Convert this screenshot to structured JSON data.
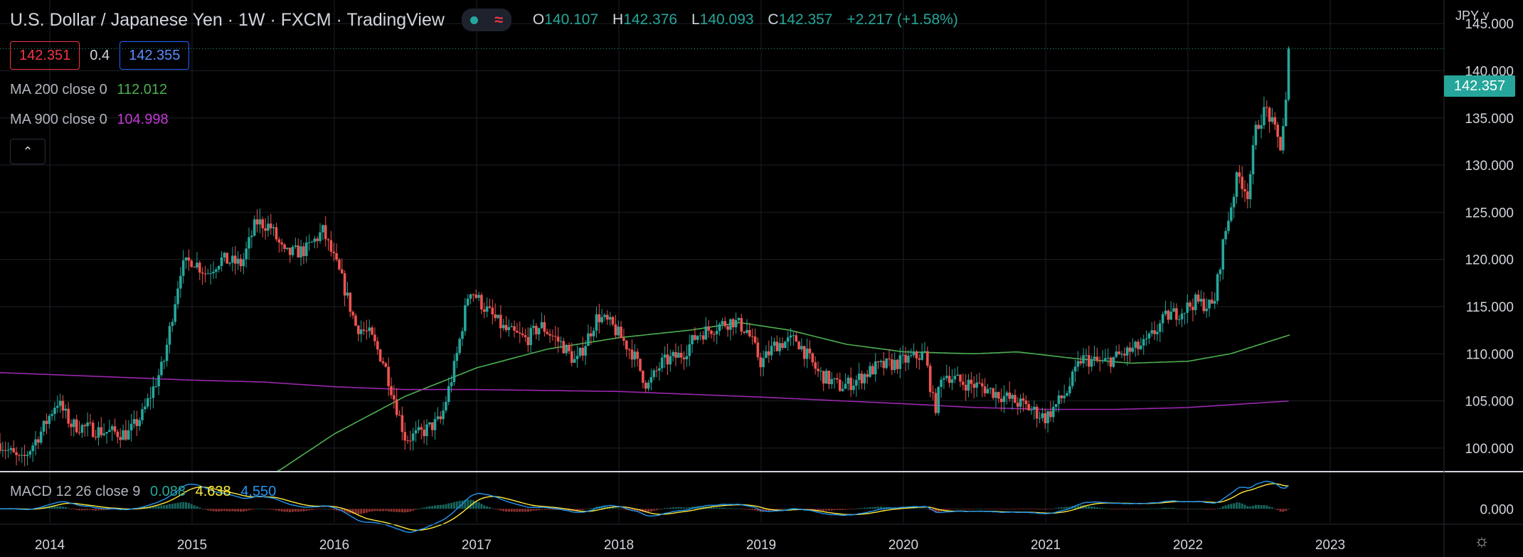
{
  "header": {
    "title": "U.S. Dollar / Japanese Yen · 1W · FXCM · TradingView",
    "ohlc": {
      "o_label": "O",
      "o": "140.107",
      "h_label": "H",
      "h": "142.376",
      "l_label": "L",
      "l": "140.093",
      "c_label": "C",
      "c": "142.357",
      "change": "+2.217 (+1.58%)"
    },
    "status_icons": [
      "market-status-dot-icon",
      "data-wave-icon"
    ]
  },
  "trade": {
    "sell": "142.351",
    "spread": "0.4",
    "buy": "142.355"
  },
  "indicators": {
    "ma200_label": "MA 200 close 0",
    "ma200_value": "112.012",
    "ma900_label": "MA 900 close 0",
    "ma900_value": "104.998",
    "macd_label": "MACD 12 26 close 9",
    "macd_hist": "0.088",
    "macd_line": "4.638",
    "macd_signal": "4.550"
  },
  "axis": {
    "currency": "JPY ˅",
    "last_price": "142.357",
    "macd_zero": "0.000"
  },
  "colors": {
    "up": "#26a69a",
    "down": "#ef5350",
    "ma200": "#4caf50",
    "ma900": "#9c27b0",
    "macd": "#2196f3",
    "signal": "#ffeb3b"
  },
  "chart_data": {
    "type": "candlestick",
    "interval": "1W",
    "ylim": [
      97.5,
      147.5
    ],
    "y_ticks": [
      100,
      105,
      110,
      115,
      120,
      125,
      130,
      135,
      140,
      145
    ],
    "y_tick_labels": [
      "100.000",
      "105.000",
      "110.000",
      "115.000",
      "120.000",
      "125.000",
      "130.000",
      "135.000",
      "140.000",
      "145.000"
    ],
    "x_ticks": [
      "2014",
      "2015",
      "2016",
      "2017",
      "2018",
      "2019",
      "2020",
      "2021",
      "2022",
      "2023"
    ],
    "xlim": [
      2013.65,
      2023.8
    ],
    "price_anchors": [
      [
        2013.65,
        100.5
      ],
      [
        2013.8,
        98.5
      ],
      [
        2013.95,
        102
      ],
      [
        2014.05,
        105
      ],
      [
        2014.15,
        102.5
      ],
      [
        2014.35,
        101.8
      ],
      [
        2014.55,
        101.5
      ],
      [
        2014.65,
        103.5
      ],
      [
        2014.8,
        109
      ],
      [
        2014.92,
        119
      ],
      [
        2015.0,
        120
      ],
      [
        2015.1,
        118.5
      ],
      [
        2015.2,
        120
      ],
      [
        2015.35,
        119.5
      ],
      [
        2015.45,
        124
      ],
      [
        2015.55,
        123.5
      ],
      [
        2015.65,
        120.5
      ],
      [
        2015.8,
        121
      ],
      [
        2015.92,
        123
      ],
      [
        2016.05,
        118
      ],
      [
        2016.15,
        113
      ],
      [
        2016.25,
        112
      ],
      [
        2016.35,
        109
      ],
      [
        2016.5,
        101
      ],
      [
        2016.6,
        101.5
      ],
      [
        2016.75,
        103
      ],
      [
        2016.85,
        109
      ],
      [
        2016.95,
        117
      ],
      [
        2017.05,
        115
      ],
      [
        2017.2,
        112.5
      ],
      [
        2017.35,
        111.5
      ],
      [
        2017.45,
        113
      ],
      [
        2017.6,
        111
      ],
      [
        2017.7,
        109
      ],
      [
        2017.85,
        114
      ],
      [
        2017.95,
        113
      ],
      [
        2018.1,
        110
      ],
      [
        2018.2,
        106.5
      ],
      [
        2018.3,
        109
      ],
      [
        2018.45,
        110
      ],
      [
        2018.55,
        112
      ],
      [
        2018.7,
        113
      ],
      [
        2018.8,
        113.5
      ],
      [
        2018.9,
        112.5
      ],
      [
        2019.0,
        109
      ],
      [
        2019.1,
        111
      ],
      [
        2019.25,
        111.5
      ],
      [
        2019.4,
        108
      ],
      [
        2019.55,
        106.5
      ],
      [
        2019.65,
        107
      ],
      [
        2019.8,
        108.5
      ],
      [
        2019.95,
        109
      ],
      [
        2020.05,
        109.5
      ],
      [
        2020.15,
        110
      ],
      [
        2020.22,
        104
      ],
      [
        2020.28,
        108
      ],
      [
        2020.4,
        107
      ],
      [
        2020.55,
        106.5
      ],
      [
        2020.7,
        105.5
      ],
      [
        2020.85,
        104.5
      ],
      [
        2021.0,
        103.2
      ],
      [
        2021.15,
        106
      ],
      [
        2021.25,
        109.5
      ],
      [
        2021.4,
        109
      ],
      [
        2021.55,
        110
      ],
      [
        2021.7,
        111
      ],
      [
        2021.85,
        114
      ],
      [
        2021.95,
        114.5
      ],
      [
        2022.05,
        115.5
      ],
      [
        2022.18,
        115
      ],
      [
        2022.25,
        122
      ],
      [
        2022.35,
        129
      ],
      [
        2022.42,
        127
      ],
      [
        2022.48,
        134
      ],
      [
        2022.55,
        136
      ],
      [
        2022.6,
        134
      ],
      [
        2022.65,
        132
      ],
      [
        2022.7,
        138
      ],
      [
        2022.72,
        142.357
      ]
    ],
    "ma200_anchors": [
      [
        2015.6,
        97.5
      ],
      [
        2016.0,
        101.5
      ],
      [
        2016.5,
        105.5
      ],
      [
        2017.0,
        108.5
      ],
      [
        2017.5,
        110.5
      ],
      [
        2018.0,
        111.7
      ],
      [
        2018.5,
        112.5
      ],
      [
        2018.85,
        113.3
      ],
      [
        2019.2,
        112.5
      ],
      [
        2019.6,
        111
      ],
      [
        2020.0,
        110.2
      ],
      [
        2020.5,
        110
      ],
      [
        2020.8,
        110.2
      ],
      [
        2021.2,
        109.5
      ],
      [
        2021.6,
        109
      ],
      [
        2022.0,
        109.2
      ],
      [
        2022.3,
        110
      ],
      [
        2022.72,
        112.012
      ]
    ],
    "ma900_anchors": [
      [
        2013.65,
        108
      ],
      [
        2014.5,
        107.5
      ],
      [
        2015.0,
        107.2
      ],
      [
        2015.5,
        107
      ],
      [
        2016.0,
        106.5
      ],
      [
        2016.5,
        106.2
      ],
      [
        2017.0,
        106.2
      ],
      [
        2018.0,
        106
      ],
      [
        2019.0,
        105.4
      ],
      [
        2020.0,
        104.7
      ],
      [
        2020.5,
        104.3
      ],
      [
        2021.0,
        104.1
      ],
      [
        2021.5,
        104.1
      ],
      [
        2022.0,
        104.3
      ],
      [
        2022.72,
        104.998
      ]
    ],
    "macd_ylim": [
      -2.5,
      6.0
    ],
    "macd_tick": 0
  }
}
